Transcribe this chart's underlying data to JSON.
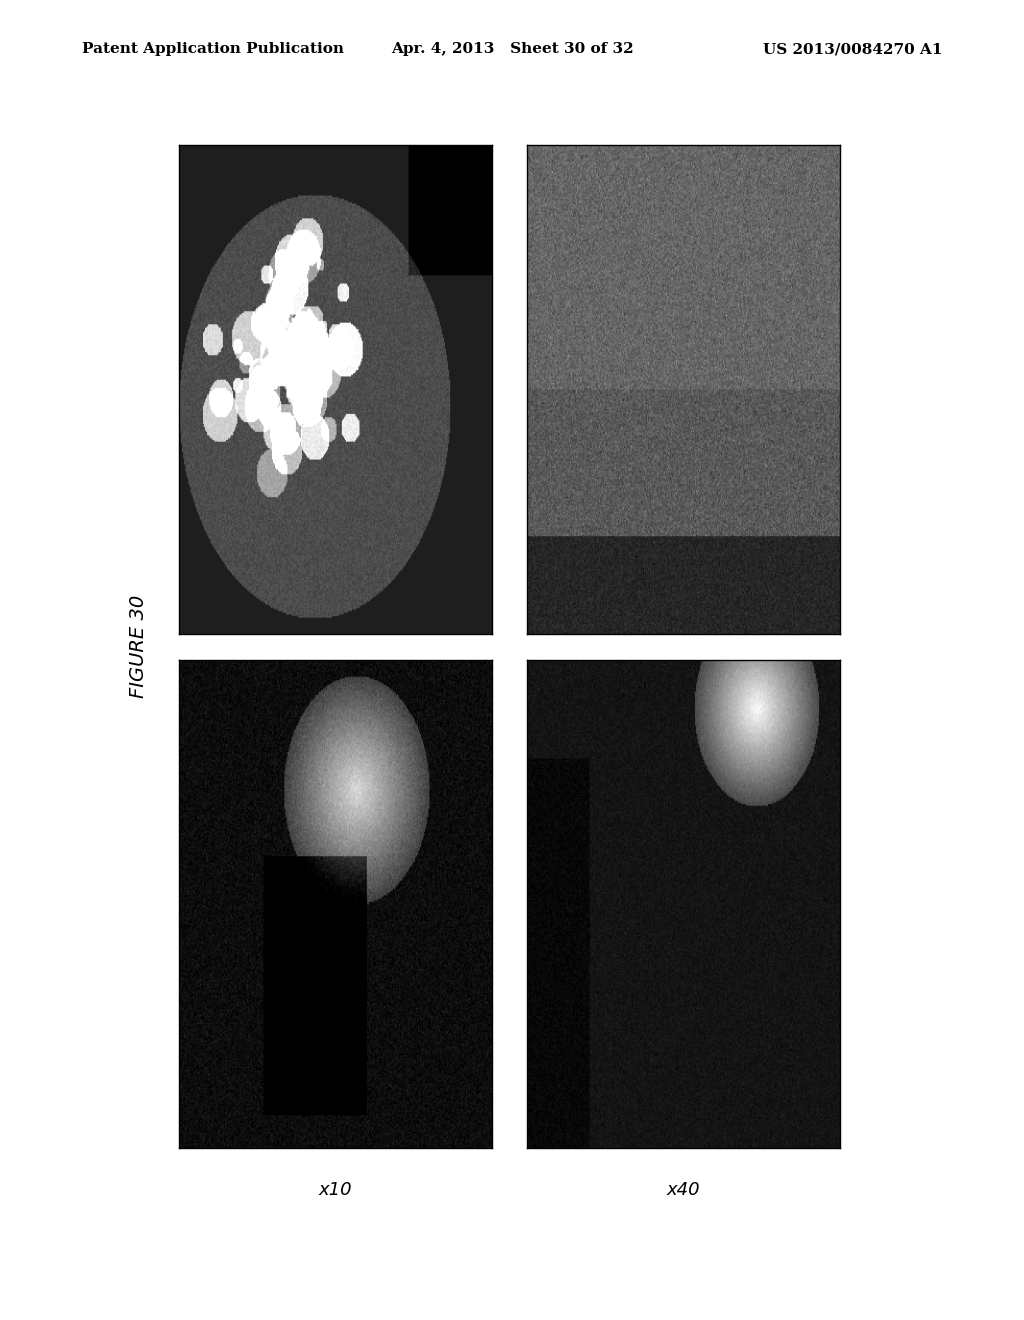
{
  "header_left": "Patent Application Publication",
  "header_mid": "Apr. 4, 2013   Sheet 30 of 32",
  "header_right": "US 2013/0084270 A1",
  "figure_label": "FIGURE 30",
  "col_labels": [
    "x10",
    "x40"
  ],
  "background_color": "#ffffff",
  "header_fontsize": 11,
  "label_fontsize": 13,
  "figure_label_fontsize": 14,
  "page_width": 10.24,
  "page_height": 13.2
}
